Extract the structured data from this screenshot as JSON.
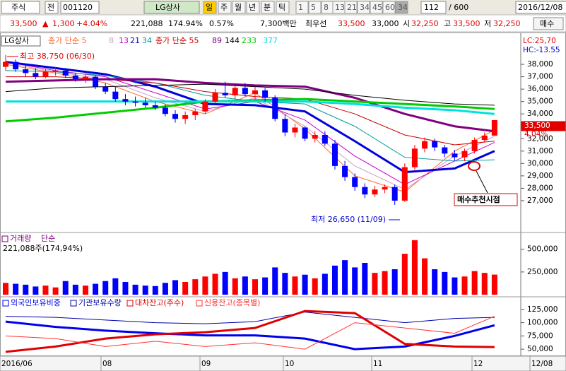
{
  "toolbar": {
    "market": "주식",
    "prefix": "전",
    "code": "001120",
    "name": "LG상사",
    "periods": [
      "일",
      "주",
      "월",
      "년",
      "분",
      "틱"
    ],
    "intervals": [
      "1",
      "5",
      "8",
      "13",
      "21",
      "34",
      "45",
      "60",
      "34"
    ],
    "count": "112",
    "total": "/ 600",
    "date": "2016/12/08"
  },
  "info_bar": {
    "price": "33,500",
    "arrow": "▲",
    "change": "1,300",
    "change_pct": "+4.04%",
    "volume": "221,088",
    "volume_ratio": "174.94%",
    "turnover": "0.57%",
    "amount": "7,300백만",
    "best_label": "최우선",
    "ask": "33,500",
    "bid": "33,000",
    "open_label": "시",
    "open": "32,250",
    "high_label": "고",
    "high": "33,500",
    "low_label": "저",
    "low": "32,250",
    "buy_button": "매수"
  },
  "x_axis": {
    "labels": [
      "2016/06",
      "08",
      "09",
      "10",
      "11",
      "12",
      "12/08"
    ]
  },
  "price_chart": {
    "type": "candlestick",
    "title": "LG상사",
    "up_color": "#ff0000",
    "down_color": "#0000ff",
    "ylim": [
      25000,
      40000
    ],
    "yticks": [
      {
        "value": 27000,
        "label": "27,000"
      },
      {
        "value": 28000,
        "label": "28,000"
      },
      {
        "value": 29000,
        "label": "29,000"
      },
      {
        "value": 30000,
        "label": "30,000"
      },
      {
        "value": 31000,
        "label": "31,000"
      },
      {
        "value": 32000,
        "label": "32,000"
      },
      {
        "value": 33000,
        "label": "33,000"
      },
      {
        "value": 34000,
        "label": "34,000"
      },
      {
        "value": 35000,
        "label": "35,000"
      },
      {
        "value": 36000,
        "label": "36,000"
      },
      {
        "value": 37000,
        "label": "37,000"
      },
      {
        "value": 38000,
        "label": "38,000"
      }
    ],
    "candles": [
      [
        37800,
        38750,
        37500,
        38200
      ],
      [
        38200,
        38400,
        37400,
        37600
      ],
      [
        37600,
        37900,
        37000,
        37300
      ],
      [
        37300,
        37700,
        36800,
        37000
      ],
      [
        37000,
        37600,
        36900,
        37400
      ],
      [
        37400,
        37800,
        37100,
        37500
      ],
      [
        37500,
        37700,
        36900,
        37100
      ],
      [
        37100,
        37300,
        36600,
        36800
      ],
      [
        36800,
        37200,
        36500,
        37000
      ],
      [
        37000,
        37100,
        36000,
        36200
      ],
      [
        36200,
        36500,
        35600,
        35800
      ],
      [
        35800,
        36200,
        35000,
        35200
      ],
      [
        35200,
        35600,
        34700,
        35000
      ],
      [
        35000,
        35400,
        34600,
        34900
      ],
      [
        34900,
        35300,
        34500,
        34700
      ],
      [
        34700,
        35000,
        34300,
        34500
      ],
      [
        34500,
        34800,
        33800,
        34000
      ],
      [
        34000,
        34300,
        33300,
        33600
      ],
      [
        33600,
        34200,
        33200,
        33900
      ],
      [
        33900,
        34400,
        33500,
        34200
      ],
      [
        34200,
        35200,
        34000,
        35000
      ],
      [
        35000,
        36000,
        34800,
        35700
      ],
      [
        35700,
        36600,
        35300,
        35500
      ],
      [
        35500,
        36300,
        35200,
        36100
      ],
      [
        36100,
        36500,
        35400,
        35600
      ],
      [
        35600,
        36200,
        35100,
        35900
      ],
      [
        35900,
        36100,
        35000,
        35300
      ],
      [
        35300,
        35500,
        33400,
        33600
      ],
      [
        33600,
        34000,
        32200,
        32500
      ],
      [
        32500,
        33200,
        32100,
        32900
      ],
      [
        32900,
        33000,
        31800,
        32000
      ],
      [
        32000,
        32600,
        31700,
        32300
      ],
      [
        32300,
        32600,
        31400,
        31600
      ],
      [
        31600,
        31900,
        29500,
        29800
      ],
      [
        29800,
        30200,
        28600,
        28900
      ],
      [
        28900,
        29200,
        27800,
        28100
      ],
      [
        28100,
        28400,
        27200,
        27500
      ],
      [
        27500,
        28200,
        27300,
        27900
      ],
      [
        27900,
        28300,
        27600,
        28100
      ],
      [
        28100,
        28300,
        26650,
        27000
      ],
      [
        27000,
        30000,
        26900,
        29700
      ],
      [
        29700,
        31500,
        29500,
        31200
      ],
      [
        31200,
        32100,
        30900,
        31800
      ],
      [
        31800,
        32000,
        31000,
        31300
      ],
      [
        31300,
        31500,
        30500,
        30800
      ],
      [
        30800,
        31100,
        30200,
        30500
      ],
      [
        30500,
        31200,
        30200,
        31000
      ],
      [
        31000,
        32100,
        30800,
        31900
      ],
      [
        31900,
        32500,
        31700,
        32250
      ],
      [
        32250,
        33500,
        32250,
        33500
      ]
    ],
    "ma_x": [
      0,
      5,
      10,
      15,
      20,
      25,
      30,
      35,
      40,
      45,
      49
    ],
    "series": [
      {
        "name": "종가 단순 5",
        "color": "#ff6633",
        "width": 1,
        "values": [
          38000,
          37300,
          36500,
          35000,
          34000,
          35700,
          32800,
          29000,
          27700,
          31000,
          32700
        ]
      },
      {
        "name": "8",
        "color": "#c8a0c8",
        "width": 1,
        "values": [
          38100,
          37400,
          36800,
          35300,
          34200,
          35300,
          33000,
          29800,
          27900,
          30600,
          32200
        ]
      },
      {
        "name": "13",
        "color": "#cc00cc",
        "width": 1,
        "values": [
          38200,
          37500,
          37000,
          35700,
          34400,
          35000,
          33500,
          30600,
          28300,
          30200,
          31700
        ]
      },
      {
        "name": "21",
        "color": "#0000dd",
        "width": 3,
        "values": [
          38200,
          37700,
          37200,
          36200,
          34800,
          34700,
          34200,
          31800,
          29300,
          29600,
          31000
        ]
      },
      {
        "name": "34",
        "color": "#009999",
        "width": 1,
        "values": [
          37500,
          37400,
          37100,
          36500,
          35500,
          35000,
          34800,
          33000,
          30500,
          30200,
          30300
        ]
      },
      {
        "name": "종가 단순 55",
        "color": "#cc0000",
        "width": 1,
        "values": [
          37000,
          37000,
          36800,
          36500,
          35800,
          35400,
          35200,
          34000,
          32300,
          31500,
          31800
        ]
      },
      {
        "name": "89",
        "color": "#800080",
        "width": 3,
        "values": [
          36600,
          36700,
          36800,
          36800,
          36500,
          36300,
          36200,
          35300,
          34000,
          33000,
          32600
        ]
      },
      {
        "name": "144",
        "color": "#000000",
        "width": 1,
        "values": [
          35800,
          36100,
          36200,
          36300,
          36400,
          36200,
          36000,
          35500,
          35100,
          34800,
          34700
        ]
      },
      {
        "name": "233",
        "color": "#00cc00",
        "width": 3,
        "values": [
          33400,
          33700,
          34100,
          34500,
          35000,
          35100,
          35200,
          35000,
          34800,
          34600,
          34400
        ]
      },
      {
        "name": "377",
        "color": "#00e0e0",
        "width": 3,
        "values": [
          35000,
          35000,
          35000,
          35000,
          35000,
          35000,
          35000,
          34800,
          34500,
          34300,
          34000
        ]
      }
    ],
    "annotations": {
      "high": "최고 38,750 (06/30)",
      "low": "최저 26,650 (11/09)",
      "lc": "LC:25,70",
      "hc": "HC:-13.55",
      "last_price": "33,500",
      "last_pct": "4.04%",
      "signal": "매수추천시점"
    }
  },
  "volume_chart": {
    "type": "bar",
    "title": "거래량",
    "method": "단순",
    "info": "221,088주(174,94%)",
    "ylim": [
      0,
      700000
    ],
    "yticks": [
      {
        "value": 250000,
        "label": "250,000"
      },
      {
        "value": 500000,
        "label": "500,000"
      }
    ],
    "values": [
      130000,
      120000,
      110000,
      90000,
      100000,
      80000,
      150000,
      110000,
      100000,
      120000,
      150000,
      180000,
      140000,
      110000,
      100000,
      95000,
      130000,
      160000,
      140000,
      170000,
      200000,
      230000,
      250000,
      180000,
      200000,
      170000,
      190000,
      300000,
      240000,
      200000,
      220000,
      180000,
      230000,
      320000,
      380000,
      300000,
      350000,
      240000,
      260000,
      280000,
      450000,
      600000,
      400000,
      280000,
      250000,
      190000,
      200000,
      260000,
      240000,
      221088
    ]
  },
  "holdings_chart": {
    "type": "line",
    "ylim": [
      40000,
      140000
    ],
    "yticks": [
      {
        "value": 50000,
        "label": "50,000"
      },
      {
        "value": 75000,
        "label": "75,000"
      },
      {
        "value": 100000,
        "label": "100,000"
      },
      {
        "value": 125000,
        "label": "125,000"
      }
    ],
    "x": [
      0,
      5,
      10,
      15,
      20,
      25,
      30,
      35,
      40,
      45,
      49
    ],
    "series": [
      {
        "name": "외국인보유비중",
        "color": "#0000ee",
        "width": 3,
        "values": [
          102000,
          92000,
          85000,
          80000,
          76000,
          76000,
          70000,
          50000,
          55000,
          75000,
          95000
        ]
      },
      {
        "name": "기관보유수량",
        "color": "#0000aa",
        "width": 1,
        "values": [
          112000,
          110000,
          105000,
          100000,
          98000,
          102000,
          120000,
          110000,
          100000,
          108000,
          110000
        ]
      },
      {
        "name": "대차잔고(주수)",
        "color": "#e00000",
        "width": 3,
        "values": [
          45000,
          55000,
          70000,
          78000,
          82000,
          90000,
          122000,
          118000,
          60000,
          55000,
          54000
        ]
      },
      {
        "name": "신용잔고(종목별)",
        "color": "#ff3333",
        "width": 1,
        "values": [
          75000,
          70000,
          55000,
          65000,
          55000,
          62000,
          50000,
          100000,
          90000,
          80000,
          112000
        ]
      }
    ]
  }
}
